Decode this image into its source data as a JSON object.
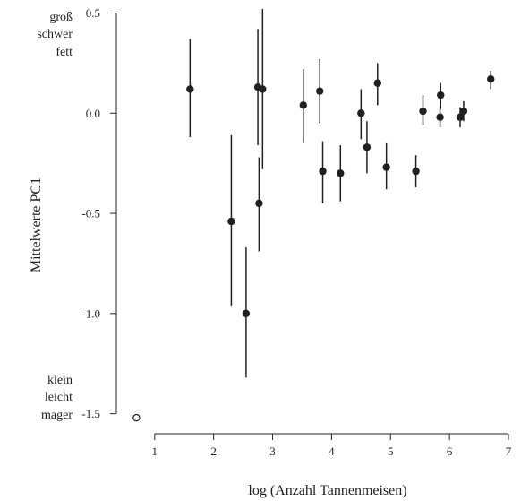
{
  "chart_data": {
    "type": "scatter",
    "xlabel": "log (Anzahl Tannenmeisen)",
    "ylabel": "Mittelwerte PC1",
    "xlim": [
      0.35,
      7.0
    ],
    "ylim": [
      -1.6,
      0.52
    ],
    "x_ticks": [
      1,
      2,
      3,
      4,
      5,
      6,
      7
    ],
    "y_ticks": [
      -1.5,
      -1.0,
      -0.5,
      0.0,
      0.5
    ],
    "x_tick_labels": [
      "1",
      "2",
      "3",
      "4",
      "5",
      "6",
      "7"
    ],
    "y_tick_labels": [
      "-1.5",
      "-1.0",
      "-0.5",
      "0.0",
      "0.5"
    ],
    "annotations": {
      "top": [
        "groß",
        "schwer",
        "fett"
      ],
      "bottom": [
        "klein",
        "leicht",
        "mager"
      ]
    },
    "grid": false,
    "series": [
      {
        "marker": "filled",
        "points": [
          {
            "x": 1.6,
            "y": 0.12,
            "lo": -0.12,
            "hi": 0.37
          },
          {
            "x": 2.3,
            "y": -0.54,
            "lo": -0.96,
            "hi": -0.11
          },
          {
            "x": 2.55,
            "y": -1.0,
            "lo": -1.32,
            "hi": -0.67
          },
          {
            "x": 2.75,
            "y": 0.13,
            "lo": -0.16,
            "hi": 0.42
          },
          {
            "x": 2.77,
            "y": -0.45,
            "lo": -0.69,
            "hi": -0.22
          },
          {
            "x": 2.83,
            "y": 0.12,
            "lo": -0.28,
            "hi": 0.52
          },
          {
            "x": 3.52,
            "y": 0.04,
            "lo": -0.15,
            "hi": 0.22
          },
          {
            "x": 3.8,
            "y": 0.11,
            "lo": -0.05,
            "hi": 0.27
          },
          {
            "x": 3.85,
            "y": -0.29,
            "lo": -0.45,
            "hi": -0.14
          },
          {
            "x": 4.15,
            "y": -0.3,
            "lo": -0.44,
            "hi": -0.16
          },
          {
            "x": 4.5,
            "y": 0.0,
            "lo": -0.13,
            "hi": 0.12
          },
          {
            "x": 4.6,
            "y": -0.17,
            "lo": -0.3,
            "hi": -0.04
          },
          {
            "x": 4.78,
            "y": 0.15,
            "lo": 0.04,
            "hi": 0.25
          },
          {
            "x": 4.93,
            "y": -0.27,
            "lo": -0.38,
            "hi": -0.15
          },
          {
            "x": 5.43,
            "y": -0.29,
            "lo": -0.37,
            "hi": -0.21
          },
          {
            "x": 5.55,
            "y": 0.01,
            "lo": -0.06,
            "hi": 0.09
          },
          {
            "x": 5.85,
            "y": 0.09,
            "lo": 0.02,
            "hi": 0.15
          },
          {
            "x": 5.84,
            "y": -0.02,
            "lo": -0.07,
            "hi": 0.03
          },
          {
            "x": 6.18,
            "y": -0.02,
            "lo": -0.07,
            "hi": 0.03
          },
          {
            "x": 6.24,
            "y": 0.01,
            "lo": -0.04,
            "hi": 0.06
          },
          {
            "x": 6.7,
            "y": 0.17,
            "lo": 0.12,
            "hi": 0.21
          }
        ]
      },
      {
        "marker": "open",
        "points": [
          {
            "x": 0.69,
            "y": -1.52
          }
        ]
      }
    ]
  }
}
